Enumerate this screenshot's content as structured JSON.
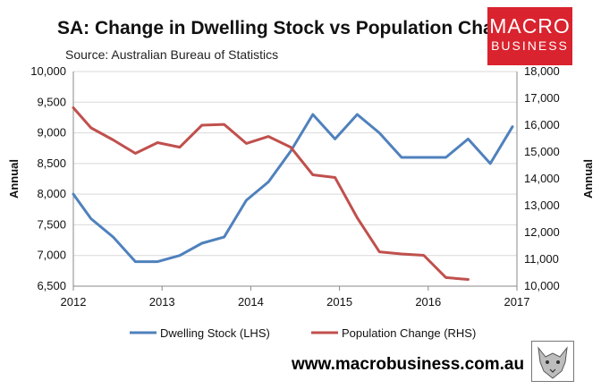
{
  "header": {
    "title": "SA: Change in Dwelling Stock vs Population Change",
    "source": "Source: Australian Bureau of Statistics"
  },
  "logo": {
    "line1": "MACRO",
    "line2": "BUSINESS"
  },
  "footer": {
    "url": "www.macrobusiness.com.au"
  },
  "colors": {
    "dwelling": "#4f81bd",
    "population": "#c0504d",
    "brand": "#d9232e"
  },
  "chart_data": {
    "type": "line",
    "title": "SA: Change in Dwelling Stock vs Population Change",
    "y_left_label": "Annual",
    "y_right_label": "Annual",
    "y_left_lim": [
      6500,
      10000
    ],
    "y_left_ticks": [
      "6,500",
      "7,000",
      "7,500",
      "8,000",
      "8,500",
      "9,000",
      "9,500",
      "10,000"
    ],
    "y_right_lim": [
      10000,
      18000
    ],
    "y_right_ticks": [
      "10,000",
      "11,000",
      "12,000",
      "13,000",
      "14,000",
      "15,000",
      "16,000",
      "17,000",
      "18,000"
    ],
    "x_lim": [
      2012,
      2017
    ],
    "x_ticks": [
      "2012",
      "2013",
      "2014",
      "2015",
      "2016",
      "2017"
    ],
    "grid": true,
    "legend_position": "bottom",
    "series": [
      {
        "name": "Dwelling Stock (LHS)",
        "axis": "left",
        "x": [
          2012.0,
          2012.2,
          2012.45,
          2012.7,
          2012.95,
          2013.2,
          2013.45,
          2013.7,
          2013.95,
          2014.2,
          2014.45,
          2014.7,
          2014.95,
          2015.2,
          2015.45,
          2015.7,
          2015.95,
          2016.2,
          2016.45,
          2016.7,
          2016.95
        ],
        "values": [
          8000,
          7600,
          7300,
          6900,
          6900,
          7000,
          7200,
          7300,
          7900,
          8200,
          8700,
          9300,
          8900,
          9300,
          9000,
          8600,
          8600,
          8600,
          8900,
          8500,
          9100
        ]
      },
      {
        "name": "Population Change (RHS)",
        "axis": "right",
        "x": [
          2012.0,
          2012.2,
          2012.45,
          2012.7,
          2012.95,
          2013.2,
          2013.45,
          2013.7,
          2013.95,
          2014.2,
          2014.45,
          2014.7,
          2014.95,
          2015.2,
          2015.45,
          2015.7,
          2015.95,
          2016.2,
          2016.45
        ],
        "values": [
          16650,
          15900,
          15450,
          14950,
          15350,
          15180,
          16000,
          16030,
          15320,
          15580,
          15180,
          14150,
          14050,
          12550,
          11280,
          11200,
          11150,
          10320,
          10250
        ]
      }
    ]
  }
}
